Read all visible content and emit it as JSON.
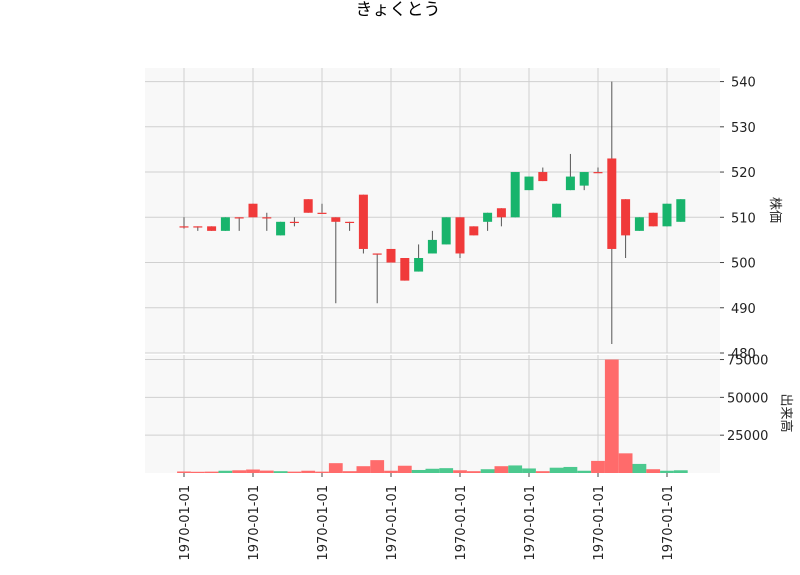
{
  "chart_data": {
    "type": "candlestick",
    "title": "きょくとう",
    "price_axis_label": "株価",
    "volume_axis_label": "出来高",
    "x_tick_labels": [
      "1970-01-01",
      "1970-01-01",
      "1970-01-01",
      "1970-01-01",
      "1970-01-01",
      "1970-01-01",
      "1970-01-01",
      "1970-01-01"
    ],
    "price_ylim": [
      480,
      543
    ],
    "price_ticks": [
      480,
      490,
      500,
      510,
      520,
      530,
      540
    ],
    "volume_ylim": [
      0,
      78000
    ],
    "volume_ticks": [
      25000,
      50000,
      75000
    ],
    "colors": {
      "up": "#18b46c",
      "down": "#f03a3a",
      "volume_up": "#4cc98f",
      "volume_down": "#ff6b6b",
      "wick": "#555555",
      "grid": "#d0d0d0",
      "panel_bg": "#f8f8f8"
    },
    "candles": [
      {
        "open": 508,
        "high": 510,
        "low": 507.5,
        "close": 508,
        "volume": 1000
      },
      {
        "open": 508,
        "high": 508,
        "low": 507,
        "close": 508,
        "volume": 800
      },
      {
        "open": 508,
        "high": 508,
        "low": 507,
        "close": 507,
        "volume": 900
      },
      {
        "open": 507,
        "high": 510,
        "low": 507,
        "close": 510,
        "volume": 1500
      },
      {
        "open": 510,
        "high": 510,
        "low": 507,
        "close": 510,
        "volume": 1800
      },
      {
        "open": 513,
        "high": 513,
        "low": 510,
        "close": 510,
        "volume": 2300
      },
      {
        "open": 510,
        "high": 511,
        "low": 507,
        "close": 510,
        "volume": 1600
      },
      {
        "open": 506,
        "high": 509,
        "low": 506,
        "close": 509,
        "volume": 1200
      },
      {
        "open": 509,
        "high": 510,
        "low": 508,
        "close": 509,
        "volume": 900
      },
      {
        "open": 514,
        "high": 514,
        "low": 511,
        "close": 511,
        "volume": 1500
      },
      {
        "open": 511,
        "high": 513,
        "low": 511,
        "close": 511,
        "volume": 900
      },
      {
        "open": 510,
        "high": 510,
        "low": 491,
        "close": 509,
        "volume": 6500
      },
      {
        "open": 509,
        "high": 509,
        "low": 507,
        "close": 509,
        "volume": 1200
      },
      {
        "open": 515,
        "high": 515,
        "low": 502,
        "close": 503,
        "volume": 4500
      },
      {
        "open": 502,
        "high": 502,
        "low": 491,
        "close": 502,
        "volume": 8500
      },
      {
        "open": 503,
        "high": 503,
        "low": 500,
        "close": 500,
        "volume": 1500
      },
      {
        "open": 501,
        "high": 501,
        "low": 496,
        "close": 496,
        "volume": 4800
      },
      {
        "open": 498,
        "high": 504,
        "low": 498,
        "close": 501,
        "volume": 2000
      },
      {
        "open": 502,
        "high": 507,
        "low": 502,
        "close": 505,
        "volume": 2800
      },
      {
        "open": 504,
        "high": 510,
        "low": 504,
        "close": 510,
        "volume": 3200
      },
      {
        "open": 510,
        "high": 510,
        "low": 501,
        "close": 502,
        "volume": 1800
      },
      {
        "open": 508,
        "high": 508,
        "low": 506,
        "close": 506,
        "volume": 1200
      },
      {
        "open": 509,
        "high": 511,
        "low": 507,
        "close": 511,
        "volume": 2500
      },
      {
        "open": 512,
        "high": 512,
        "low": 508,
        "close": 510,
        "volume": 4500
      },
      {
        "open": 510,
        "high": 520,
        "low": 510,
        "close": 520,
        "volume": 5000
      },
      {
        "open": 516,
        "high": 519,
        "low": 516,
        "close": 519,
        "volume": 3000
      },
      {
        "open": 520,
        "high": 521,
        "low": 518,
        "close": 518,
        "volume": 1200
      },
      {
        "open": 510,
        "high": 513,
        "low": 510,
        "close": 513,
        "volume": 3500
      },
      {
        "open": 516,
        "high": 524,
        "low": 516,
        "close": 519,
        "volume": 4000
      },
      {
        "open": 517,
        "high": 520,
        "low": 516,
        "close": 520,
        "volume": 1500
      },
      {
        "open": 520,
        "high": 521,
        "low": 520,
        "close": 520,
        "volume": 8000
      },
      {
        "open": 523,
        "high": 540,
        "low": 482,
        "close": 503,
        "volume": 75000
      },
      {
        "open": 514,
        "high": 514,
        "low": 501,
        "close": 506,
        "volume": 13000
      },
      {
        "open": 507,
        "high": 510,
        "low": 507,
        "close": 510,
        "volume": 6000
      },
      {
        "open": 511,
        "high": 511,
        "low": 508,
        "close": 508,
        "volume": 2500
      },
      {
        "open": 508,
        "high": 513,
        "low": 508,
        "close": 513,
        "volume": 1500
      },
      {
        "open": 509,
        "high": 514,
        "low": 509,
        "close": 514,
        "volume": 1800
      }
    ]
  }
}
